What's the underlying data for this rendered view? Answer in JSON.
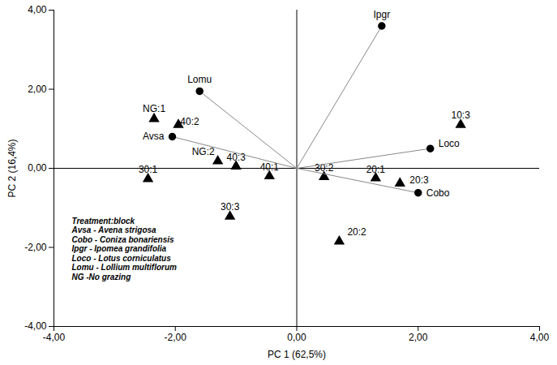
{
  "chart_data": {
    "type": "scatter",
    "x_label": "PC 1 (62,5%)",
    "y_label": "PC 2 (16,4%)",
    "xlim": [
      -4,
      4
    ],
    "ylim": [
      -4,
      4
    ],
    "xticks": [
      {
        "value": -4,
        "label": "-4,00"
      },
      {
        "value": -2,
        "label": "-2,00"
      },
      {
        "value": 0,
        "label": "0,00"
      },
      {
        "value": 2,
        "label": "2,00"
      },
      {
        "value": 4,
        "label": "4,00"
      }
    ],
    "yticks": [
      {
        "value": -4,
        "label": "-4,00"
      },
      {
        "value": -2,
        "label": "-2,00"
      },
      {
        "value": 0,
        "label": "0,00"
      },
      {
        "value": 2,
        "label": "2,00"
      },
      {
        "value": 4,
        "label": "4,00"
      }
    ],
    "grid": false,
    "series": [
      {
        "marker": "triangle",
        "color": "#000000",
        "labels": [
          "NG:1",
          "40:2",
          "NG:2",
          "40:3",
          "30:1",
          "40:1",
          "30:3",
          "30:2",
          "20:1",
          "20:3",
          "20:2",
          "10:3"
        ],
        "x": [
          -2.35,
          -1.95,
          -1.3,
          -1.0,
          -2.45,
          -0.45,
          -1.1,
          0.45,
          1.3,
          1.7,
          0.7,
          2.7
        ],
        "y": [
          1.25,
          1.1,
          0.18,
          0.05,
          -0.27,
          -0.2,
          -1.22,
          -0.22,
          -0.25,
          -0.38,
          -1.85,
          1.1
        ]
      },
      {
        "marker": "circle",
        "color": "#000000",
        "line_style": "solid",
        "labels": [
          "Ipgr",
          "Lomu",
          "Avsa",
          "Loco",
          "Cobo"
        ],
        "x": [
          1.4,
          -1.6,
          -2.05,
          2.2,
          2.0
        ],
        "y": [
          3.6,
          1.95,
          0.8,
          0.5,
          -0.62
        ]
      }
    ],
    "annotations": [
      "Treatment:block",
      "Avsa - Avena strigosa",
      "Cobo - Coniza bonariensis",
      "Ipgr - Ipomea grandifolia",
      "Loco - Lotus corniculatus",
      "Lomu - Lollium multiflorum",
      "NG -No grazing"
    ]
  }
}
